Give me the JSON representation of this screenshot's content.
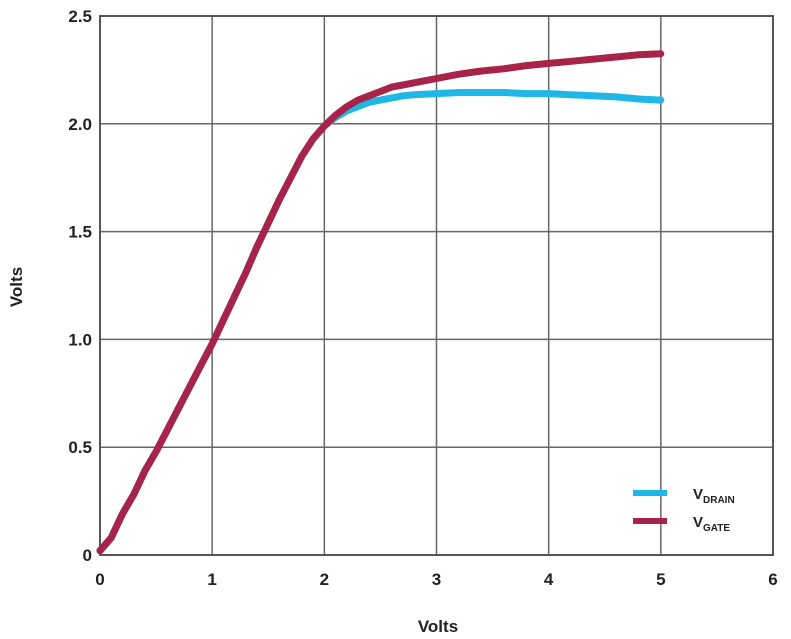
{
  "chart_data": {
    "type": "line",
    "title": "",
    "xlabel": "Volts",
    "ylabel": "Volts",
    "xlim": [
      0,
      6
    ],
    "ylim": [
      0,
      2.5
    ],
    "x_ticks": [
      "0",
      "1",
      "2",
      "3",
      "4",
      "5",
      "6"
    ],
    "y_ticks": [
      "0",
      "0.5",
      "1.0",
      "1.5",
      "2.0",
      "2.5"
    ],
    "grid": true,
    "legend_position": "bottom-right",
    "series": [
      {
        "name": "V",
        "name_sub": "DRAIN",
        "color": "#1fb6e8",
        "points": [
          [
            0,
            0.02
          ],
          [
            0.1,
            0.08
          ],
          [
            0.2,
            0.19
          ],
          [
            0.3,
            0.28
          ],
          [
            0.4,
            0.39
          ],
          [
            0.5,
            0.48
          ],
          [
            0.6,
            0.58
          ],
          [
            0.7,
            0.68
          ],
          [
            0.8,
            0.78
          ],
          [
            0.9,
            0.88
          ],
          [
            1.0,
            0.98
          ],
          [
            1.1,
            1.09
          ],
          [
            1.2,
            1.2
          ],
          [
            1.3,
            1.31
          ],
          [
            1.4,
            1.43
          ],
          [
            1.5,
            1.54
          ],
          [
            1.6,
            1.65
          ],
          [
            1.7,
            1.75
          ],
          [
            1.8,
            1.85
          ],
          [
            1.9,
            1.93
          ],
          [
            2.0,
            1.99
          ],
          [
            2.1,
            2.03
          ],
          [
            2.2,
            2.06
          ],
          [
            2.3,
            2.08
          ],
          [
            2.4,
            2.1
          ],
          [
            2.5,
            2.11
          ],
          [
            2.6,
            2.12
          ],
          [
            2.7,
            2.13
          ],
          [
            2.8,
            2.135
          ],
          [
            3.0,
            2.14
          ],
          [
            3.2,
            2.145
          ],
          [
            3.4,
            2.145
          ],
          [
            3.6,
            2.145
          ],
          [
            3.8,
            2.14
          ],
          [
            4.0,
            2.14
          ],
          [
            4.2,
            2.135
          ],
          [
            4.4,
            2.13
          ],
          [
            4.6,
            2.125
          ],
          [
            4.8,
            2.115
          ],
          [
            5.0,
            2.11
          ]
        ]
      },
      {
        "name": "V",
        "name_sub": "GATE",
        "color": "#a8234a",
        "points": [
          [
            0,
            0.02
          ],
          [
            0.1,
            0.08
          ],
          [
            0.2,
            0.19
          ],
          [
            0.3,
            0.28
          ],
          [
            0.4,
            0.39
          ],
          [
            0.5,
            0.48
          ],
          [
            0.6,
            0.58
          ],
          [
            0.7,
            0.68
          ],
          [
            0.8,
            0.78
          ],
          [
            0.9,
            0.88
          ],
          [
            1.0,
            0.98
          ],
          [
            1.1,
            1.09
          ],
          [
            1.2,
            1.2
          ],
          [
            1.3,
            1.31
          ],
          [
            1.4,
            1.43
          ],
          [
            1.5,
            1.54
          ],
          [
            1.6,
            1.65
          ],
          [
            1.7,
            1.75
          ],
          [
            1.8,
            1.85
          ],
          [
            1.9,
            1.93
          ],
          [
            2.0,
            1.99
          ],
          [
            2.1,
            2.04
          ],
          [
            2.2,
            2.08
          ],
          [
            2.3,
            2.11
          ],
          [
            2.4,
            2.13
          ],
          [
            2.5,
            2.15
          ],
          [
            2.6,
            2.17
          ],
          [
            2.7,
            2.18
          ],
          [
            2.8,
            2.19
          ],
          [
            3.0,
            2.21
          ],
          [
            3.2,
            2.23
          ],
          [
            3.4,
            2.245
          ],
          [
            3.6,
            2.255
          ],
          [
            3.8,
            2.27
          ],
          [
            4.0,
            2.28
          ],
          [
            4.2,
            2.29
          ],
          [
            4.4,
            2.3
          ],
          [
            4.6,
            2.31
          ],
          [
            4.8,
            2.32
          ],
          [
            5.0,
            2.325
          ]
        ]
      }
    ]
  }
}
